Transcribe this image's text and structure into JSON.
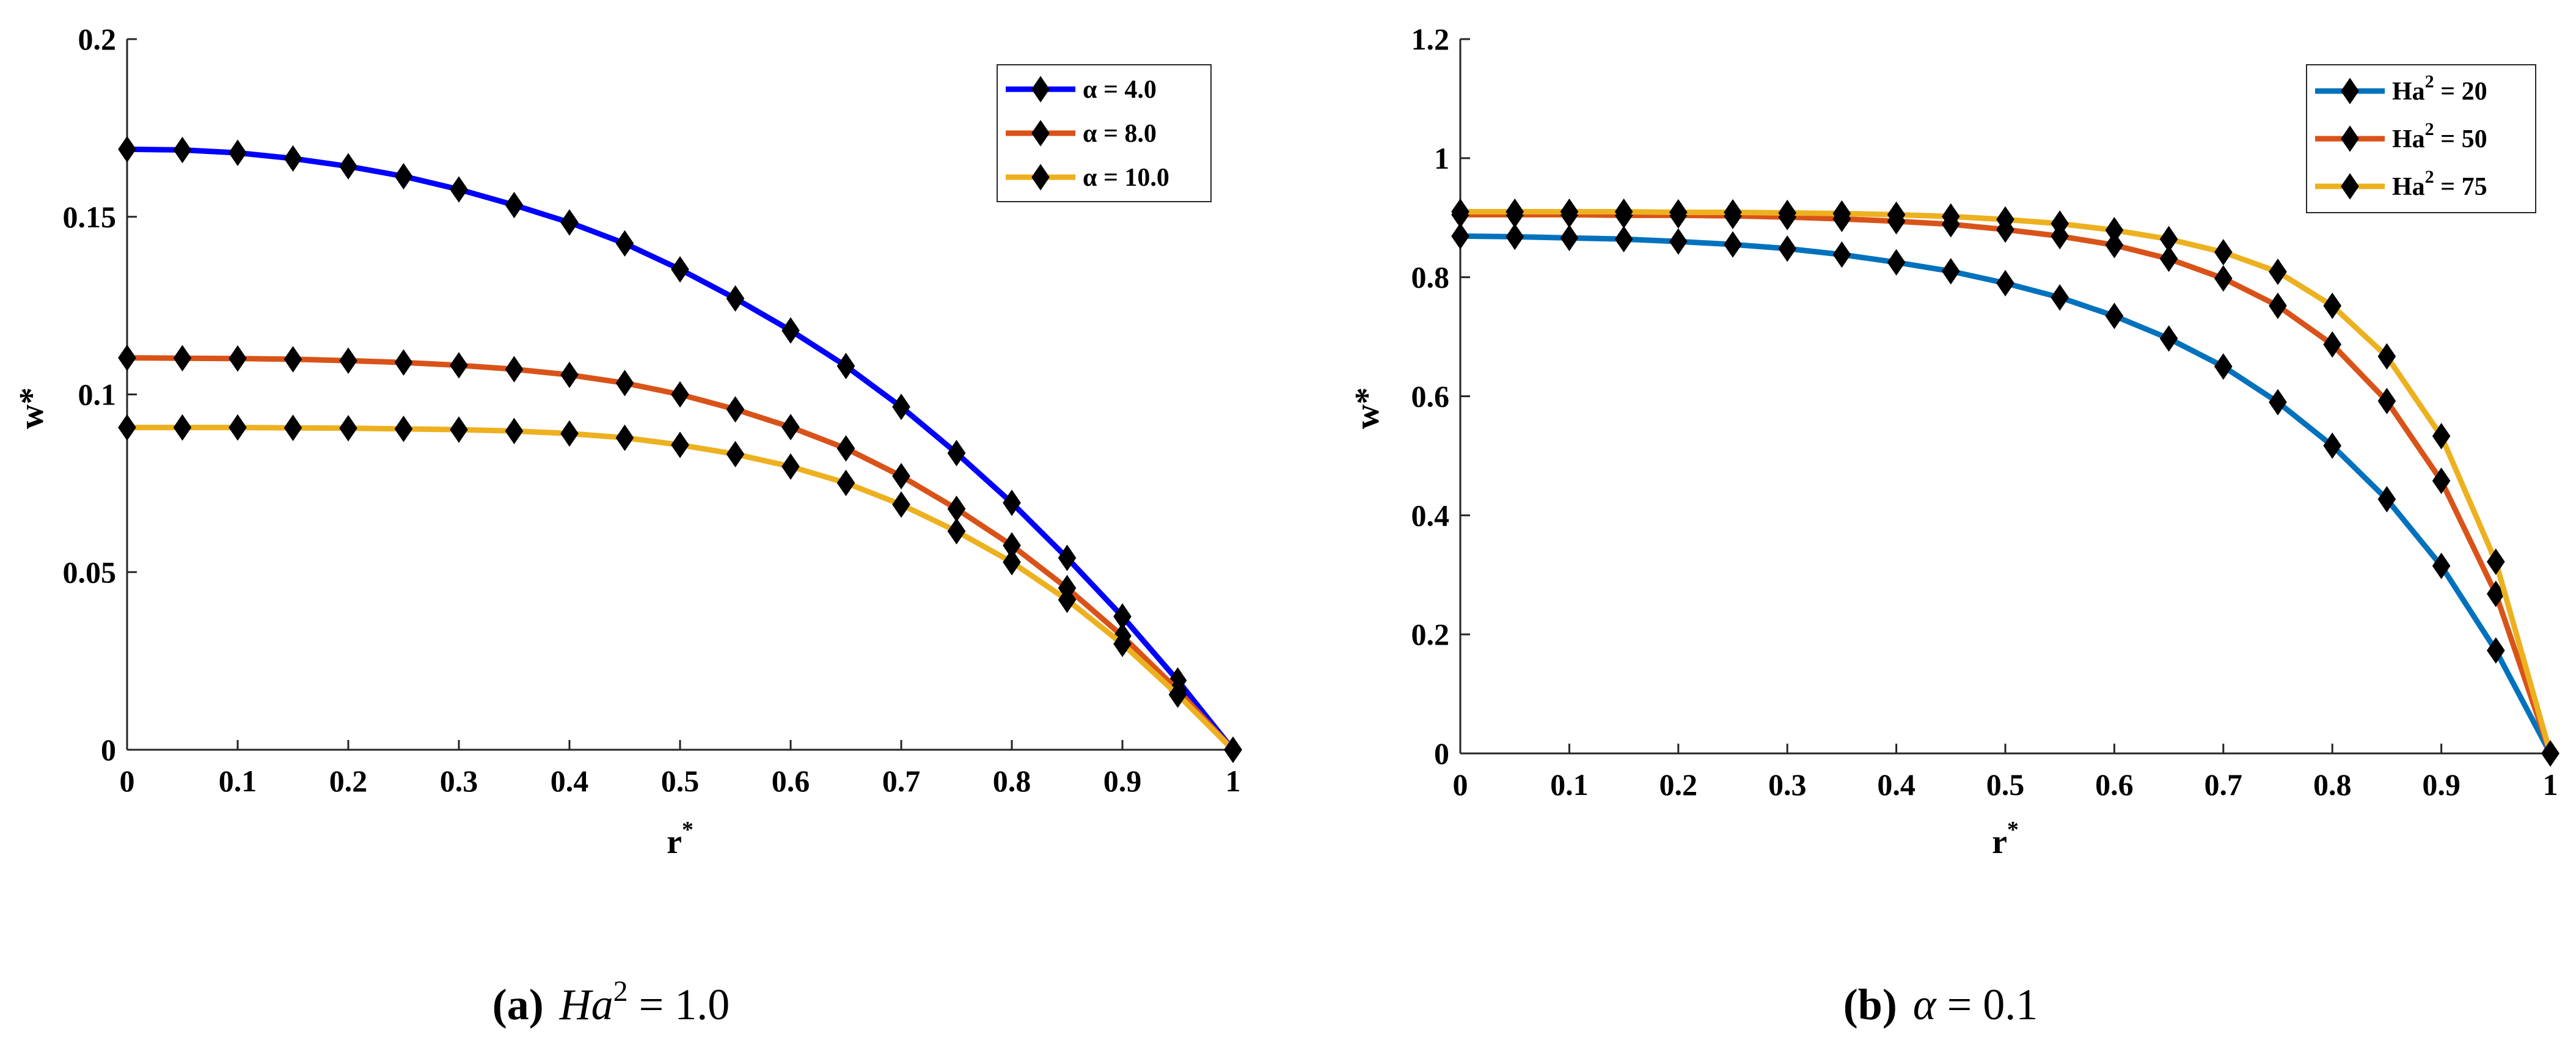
{
  "chart_data": [
    {
      "type": "line",
      "panel_label": "(a)",
      "subtitle_parts": {
        "symbol": "Ha",
        "sup": "2",
        "rest": " = 1.0"
      },
      "xlabel": "r",
      "xlabel_sup": "*",
      "ylabel": "w*",
      "xlim": [
        0,
        1
      ],
      "ylim": [
        0,
        0.2
      ],
      "xticks": [
        "0",
        "0.1",
        "0.2",
        "0.3",
        "0.4",
        "0.5",
        "0.6",
        "0.7",
        "0.8",
        "0.9",
        "1"
      ],
      "yticks": [
        "0",
        "0.05",
        "0.1",
        "0.15",
        "0.2"
      ],
      "xtick_values": [
        0,
        0.1,
        0.2,
        0.3,
        0.4,
        0.5,
        0.6,
        0.7,
        0.8,
        0.9,
        1
      ],
      "ytick_values": [
        0,
        0.05,
        0.1,
        0.15,
        0.2
      ],
      "legend_position": "top-right",
      "x": [
        0,
        0.05,
        0.1,
        0.15,
        0.2,
        0.25,
        0.3,
        0.35,
        0.4,
        0.45,
        0.5,
        0.55,
        0.6,
        0.65,
        0.7,
        0.75,
        0.8,
        0.85,
        0.9,
        0.95,
        1
      ],
      "series": [
        {
          "sym": "α",
          "name": " = 4.0",
          "color": "#0000ff",
          "values": [
            0.169,
            0.1688,
            0.168,
            0.1664,
            0.1642,
            0.1614,
            0.1577,
            0.1533,
            0.1484,
            0.1425,
            0.1352,
            0.127,
            0.118,
            0.108,
            0.0965,
            0.0835,
            0.0695,
            0.054,
            0.0375,
            0.0195,
            0
          ]
        },
        {
          "sym": "α",
          "name": " = 8.0",
          "color": "#d95319",
          "values": [
            0.1103,
            0.1102,
            0.1101,
            0.1099,
            0.1095,
            0.109,
            0.1082,
            0.1071,
            0.1055,
            0.1032,
            0.1,
            0.0958,
            0.0908,
            0.0848,
            0.077,
            0.0678,
            0.0575,
            0.0455,
            0.032,
            0.0168,
            0
          ]
        },
        {
          "sym": "α",
          "name": " = 10.0",
          "color": "#edb120",
          "values": [
            0.0907,
            0.0907,
            0.0907,
            0.0906,
            0.0905,
            0.0903,
            0.0901,
            0.0897,
            0.089,
            0.0878,
            0.0858,
            0.0832,
            0.0797,
            0.0751,
            0.069,
            0.0615,
            0.0528,
            0.0422,
            0.0298,
            0.0155,
            0
          ]
        }
      ]
    },
    {
      "type": "line",
      "panel_label": "(b)",
      "subtitle_parts": {
        "symbol": "α",
        "sup": "",
        "rest": " = 0.1"
      },
      "xlabel": "r",
      "xlabel_sup": "*",
      "ylabel": "w*",
      "xlim": [
        0,
        1
      ],
      "ylim": [
        0,
        1.2
      ],
      "xticks": [
        "0",
        "0.1",
        "0.2",
        "0.3",
        "0.4",
        "0.5",
        "0.6",
        "0.7",
        "0.8",
        "0.9",
        "1"
      ],
      "yticks": [
        "0",
        "0.2",
        "0.4",
        "0.6",
        "0.8",
        "1",
        "1.2"
      ],
      "xtick_values": [
        0,
        0.1,
        0.2,
        0.3,
        0.4,
        0.5,
        0.6,
        0.7,
        0.8,
        0.9,
        1
      ],
      "ytick_values": [
        0,
        0.2,
        0.4,
        0.6,
        0.8,
        1,
        1.2
      ],
      "legend_position": "top-right",
      "x": [
        0,
        0.05,
        0.1,
        0.15,
        0.2,
        0.25,
        0.3,
        0.35,
        0.4,
        0.45,
        0.5,
        0.55,
        0.6,
        0.65,
        0.7,
        0.75,
        0.8,
        0.85,
        0.9,
        0.95,
        1
      ],
      "series": [
        {
          "sym": "Ha",
          "sup": "2",
          "name": " = 20",
          "color": "#0072bd",
          "values": [
            0.869,
            0.868,
            0.866,
            0.864,
            0.86,
            0.855,
            0.848,
            0.838,
            0.825,
            0.81,
            0.79,
            0.766,
            0.735,
            0.697,
            0.65,
            0.59,
            0.517,
            0.427,
            0.315,
            0.173,
            0
          ]
        },
        {
          "sym": "Ha",
          "sup": "2",
          "name": " = 50",
          "color": "#d95319",
          "values": [
            0.905,
            0.905,
            0.905,
            0.904,
            0.904,
            0.903,
            0.901,
            0.898,
            0.894,
            0.889,
            0.88,
            0.869,
            0.854,
            0.831,
            0.798,
            0.752,
            0.687,
            0.592,
            0.458,
            0.268,
            0
          ]
        },
        {
          "sym": "Ha",
          "sup": "2",
          "name": " = 75",
          "color": "#edb120",
          "values": [
            0.91,
            0.91,
            0.91,
            0.91,
            0.909,
            0.909,
            0.908,
            0.907,
            0.905,
            0.902,
            0.897,
            0.89,
            0.879,
            0.864,
            0.842,
            0.809,
            0.752,
            0.667,
            0.533,
            0.322,
            0
          ]
        }
      ]
    }
  ]
}
